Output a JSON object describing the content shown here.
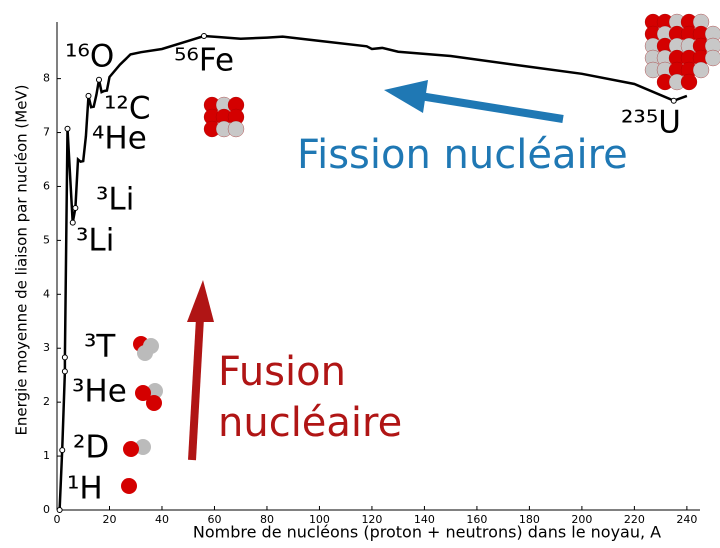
{
  "chart_data": {
    "type": "line",
    "xlabel": "Nombre de nucléons (proton + neutrons) dans le noyau, A",
    "ylabel": "Energie moyenne de liaison par nucléon (MeV)",
    "x": [
      1,
      2,
      3,
      3,
      4,
      6,
      7,
      8,
      9,
      10,
      11,
      12,
      13,
      14,
      15,
      16,
      17,
      18,
      19,
      20,
      24,
      28,
      32,
      40,
      50,
      56,
      62,
      70,
      80,
      86,
      100,
      118,
      120,
      124,
      130,
      150,
      180,
      200,
      220,
      235,
      240
    ],
    "values": [
      0,
      1.11,
      2.57,
      2.83,
      7.07,
      5.33,
      5.6,
      6.5,
      6.46,
      6.47,
      6.93,
      7.68,
      7.47,
      7.48,
      7.7,
      7.98,
      7.75,
      7.77,
      7.78,
      8.03,
      8.26,
      8.45,
      8.49,
      8.55,
      8.7,
      8.79,
      8.77,
      8.74,
      8.76,
      8.78,
      8.7,
      8.6,
      8.55,
      8.57,
      8.5,
      8.42,
      8.22,
      8.09,
      7.9,
      7.59,
      7.68
    ],
    "color": "#000000",
    "xlim": [
      0,
      245
    ],
    "ylim": [
      0,
      9.05
    ],
    "xticks": [
      0,
      20,
      40,
      60,
      80,
      100,
      120,
      140,
      160,
      180,
      200,
      220,
      240
    ],
    "yticks": [
      0,
      1,
      2,
      3,
      4,
      5,
      6,
      7,
      8
    ],
    "nuclides": [
      {
        "label": "¹H",
        "x": 1,
        "y": 0
      },
      {
        "label": "²D",
        "x": 2,
        "y": 1.11
      },
      {
        "label": "³He",
        "x": 3,
        "y": 2.57
      },
      {
        "label": "³T",
        "x": 3,
        "y": 2.83
      },
      {
        "label": "³Li",
        "x": 6,
        "y": 5.33
      },
      {
        "label": "³Li",
        "x": 7,
        "y": 5.6
      },
      {
        "label": "⁴He",
        "x": 4,
        "y": 7.07
      },
      {
        "label": "¹²C",
        "x": 12,
        "y": 7.68
      },
      {
        "label": "¹⁶O",
        "x": 16,
        "y": 7.98
      },
      {
        "label": "⁵⁶Fe",
        "x": 56,
        "y": 8.79
      },
      {
        "label": "²³⁵U",
        "x": 235,
        "y": 7.59
      }
    ],
    "fission_label": "Fission nucléaire",
    "fusion_label": [
      "Fusion",
      "nucléaire"
    ]
  }
}
